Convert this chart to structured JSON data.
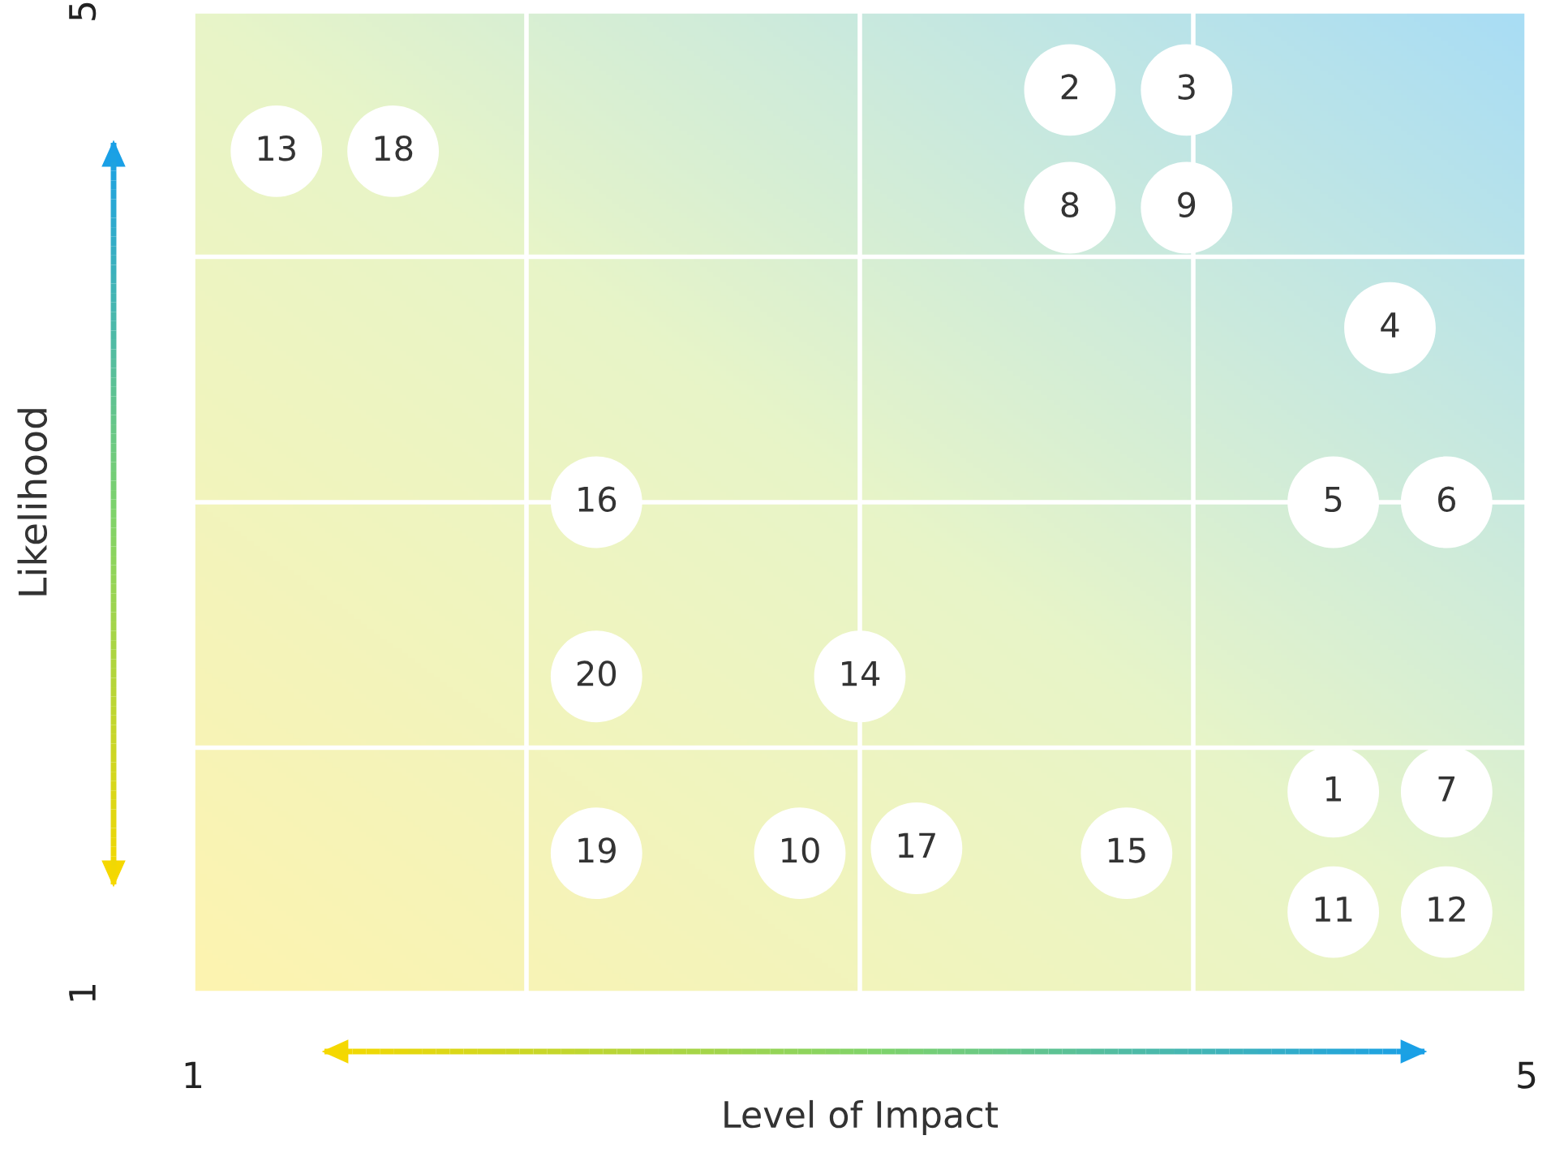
{
  "chart_data": {
    "type": "scatter",
    "xlabel": "Level of Impact",
    "ylabel": "Likelihood",
    "xlim": [
      1,
      5
    ],
    "ylim": [
      1,
      5
    ],
    "xticks": [
      1,
      {
        "value": 2,
        "label": null
      },
      {
        "value": 3,
        "label": null
      },
      {
        "value": 4,
        "label": null
      },
      5
    ],
    "yticks": [
      1,
      {
        "value": 2,
        "label": null
      },
      {
        "value": 3,
        "label": null
      },
      {
        "value": 4,
        "label": null
      },
      5
    ],
    "grid": true,
    "marker": "circle",
    "series": [
      {
        "color": "#ffffff",
        "x": [
          4.42,
          3.63,
          3.98,
          4.59,
          4.42,
          4.76,
          4.76,
          3.63,
          3.98,
          2.82,
          4.42,
          4.76,
          1.25,
          3.0,
          3.8,
          2.21,
          3.17,
          1.6,
          2.21,
          2.21
        ],
        "values": [
          1.82,
          4.68,
          4.68,
          3.71,
          3.0,
          3.0,
          1.82,
          4.2,
          4.2,
          1.57,
          1.33,
          1.33,
          4.43,
          2.29,
          1.57,
          3.0,
          1.59,
          4.43,
          1.57,
          2.29
        ]
      }
    ],
    "annotations": [
      {
        "text": "1",
        "x": 4.42,
        "y": 1.82
      },
      {
        "text": "2",
        "x": 3.63,
        "y": 4.68
      },
      {
        "text": "3",
        "x": 3.98,
        "y": 4.68
      },
      {
        "text": "4",
        "x": 4.59,
        "y": 3.71
      },
      {
        "text": "5",
        "x": 4.42,
        "y": 3.0
      },
      {
        "text": "6",
        "x": 4.76,
        "y": 3.0
      },
      {
        "text": "7",
        "x": 4.76,
        "y": 1.82
      },
      {
        "text": "8",
        "x": 3.63,
        "y": 4.2
      },
      {
        "text": "9",
        "x": 3.98,
        "y": 4.2
      },
      {
        "text": "10",
        "x": 2.82,
        "y": 1.57
      },
      {
        "text": "11",
        "x": 4.42,
        "y": 1.33
      },
      {
        "text": "12",
        "x": 4.76,
        "y": 1.33
      },
      {
        "text": "13",
        "x": 1.25,
        "y": 4.43
      },
      {
        "text": "14",
        "x": 3.0,
        "y": 2.29
      },
      {
        "text": "15",
        "x": 3.8,
        "y": 1.57
      },
      {
        "text": "16",
        "x": 2.21,
        "y": 3.0
      },
      {
        "text": "17",
        "x": 3.17,
        "y": 1.59
      },
      {
        "text": "18",
        "x": 1.6,
        "y": 4.43
      },
      {
        "text": "19",
        "x": 2.21,
        "y": 1.57
      },
      {
        "text": "20",
        "x": 2.21,
        "y": 2.29
      }
    ]
  }
}
